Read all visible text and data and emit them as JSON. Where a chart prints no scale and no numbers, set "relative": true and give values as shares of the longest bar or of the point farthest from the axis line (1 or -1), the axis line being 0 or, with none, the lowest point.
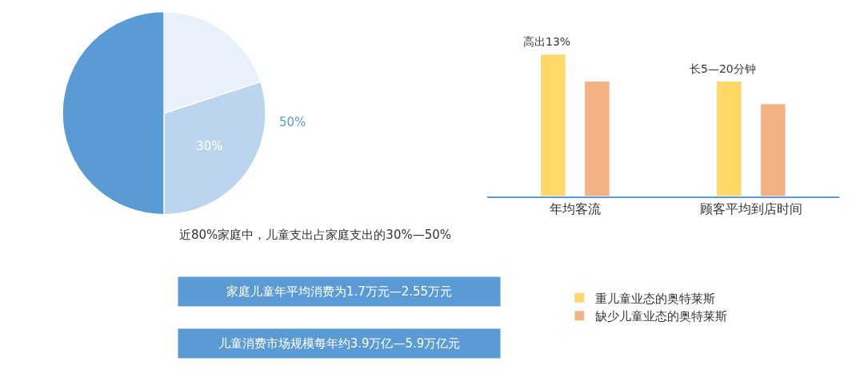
{
  "chart_data": [
    {
      "type": "pie",
      "categories": [
        null,
        null,
        null
      ],
      "values": [
        20,
        30,
        50
      ],
      "colors": [
        "#e8f0fa",
        "#bcd5ee",
        "#5b9bd5"
      ],
      "value_labels": [
        null,
        "30%",
        null
      ],
      "annotations": [
        "50%",
        "近80%家庭中，儿童支出占家庭支出的30%—50%",
        "家庭儿童年平均消费为1.7万元—2.55万元",
        "儿童消费市场规模每年约3.9万亿—5.9万亿元"
      ]
    },
    {
      "type": "bar",
      "relative": true,
      "categories": [
        "年均客流",
        "顾客平均到店时间"
      ],
      "series": [
        {
          "name": "重儿童业态的奥特莱斯",
          "color": "#ffd966",
          "values": [
            1,
            0.81
          ]
        },
        {
          "name": "缺少儿童业态的奥特莱斯",
          "color": "#f4b183",
          "values": [
            0.81,
            0.65
          ]
        }
      ],
      "annotations": [
        "高出13%",
        "长5—20分钟"
      ],
      "legend": "bottom"
    }
  ]
}
